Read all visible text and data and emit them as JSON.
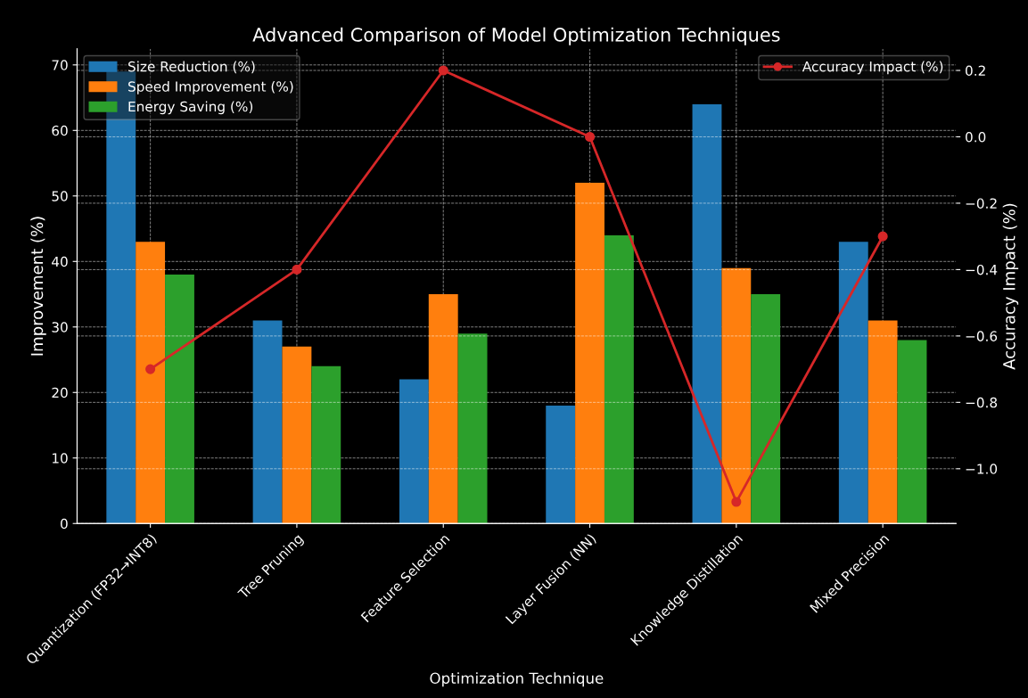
{
  "chart_data": {
    "type": "bar",
    "title": "Advanced Comparison of Model Optimization Techniques",
    "xlabel": "Optimization Technique",
    "ylabel": "Improvement (%)",
    "y2label": "Accuracy Impact (%)",
    "categories": [
      "Quantization (FP32→INT8)",
      "Tree Pruning",
      "Feature Selection",
      "Layer Fusion (NN)",
      "Knowledge Distillation",
      "Mixed Precision"
    ],
    "series": [
      {
        "name": "Size Reduction (%)",
        "color": "#1f77b4",
        "values": [
          69,
          31,
          22,
          18,
          64,
          43
        ]
      },
      {
        "name": "Speed Improvement (%)",
        "color": "#ff7f0e",
        "values": [
          43,
          27,
          35,
          52,
          39,
          31
        ]
      },
      {
        "name": "Energy Saving (%)",
        "color": "#2ca02c",
        "values": [
          38,
          24,
          29,
          44,
          35,
          28
        ]
      },
      {
        "name": "Accuracy Impact (%)",
        "color": "#d62728",
        "type": "line",
        "axis": "y2",
        "marker": "circle",
        "values": [
          -0.7,
          -0.4,
          0.2,
          0.0,
          -1.1,
          -0.3
        ]
      }
    ],
    "ylim": [
      0,
      72.45
    ],
    "yticks": [
      0,
      10,
      20,
      30,
      40,
      50,
      60,
      70
    ],
    "y2lim": [
      -1.165,
      0.265
    ],
    "y2ticks": [
      {
        "value": -1.0,
        "label": "−1.0"
      },
      {
        "value": -0.8,
        "label": "−0.8"
      },
      {
        "value": -0.6,
        "label": "−0.6"
      },
      {
        "value": -0.4,
        "label": "−0.4"
      },
      {
        "value": -0.2,
        "label": "−0.2"
      },
      {
        "value": 0.0,
        "label": "0.0"
      },
      {
        "value": 0.2,
        "label": "0.2"
      }
    ],
    "grid": true,
    "legend": "top left"
  }
}
